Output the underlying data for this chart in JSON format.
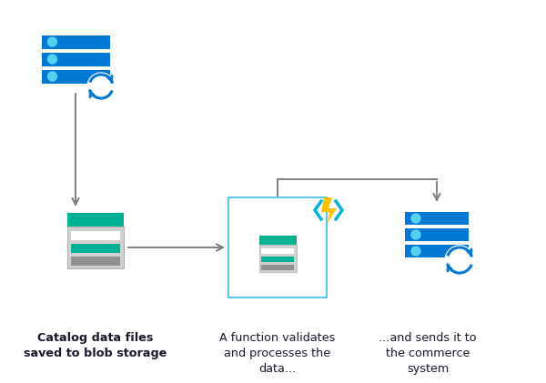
{
  "bg_color": "#ffffff",
  "blue": "#0078d4",
  "blue_light": "#1a9dff",
  "teal": "#00b294",
  "teal_dark": "#008a75",
  "gray_light": "#d4d4d4",
  "gray_mid": "#a0a0a0",
  "gray_bar": "#8a8a8a",
  "cyan_border": "#5bc8e8",
  "cyan_bracket": "#00b4d8",
  "lightning_yellow": "#ffc000",
  "arrow_color": "#808080",
  "text_color": "#1a1a2e",
  "labels": [
    "Catalog data files\nsaved to blob storage",
    "A function validates\nand processes the\ndata...",
    "...and sends it to\nthe commerce\nsystem"
  ],
  "figsize": [
    6.0,
    4.21
  ],
  "dpi": 100
}
